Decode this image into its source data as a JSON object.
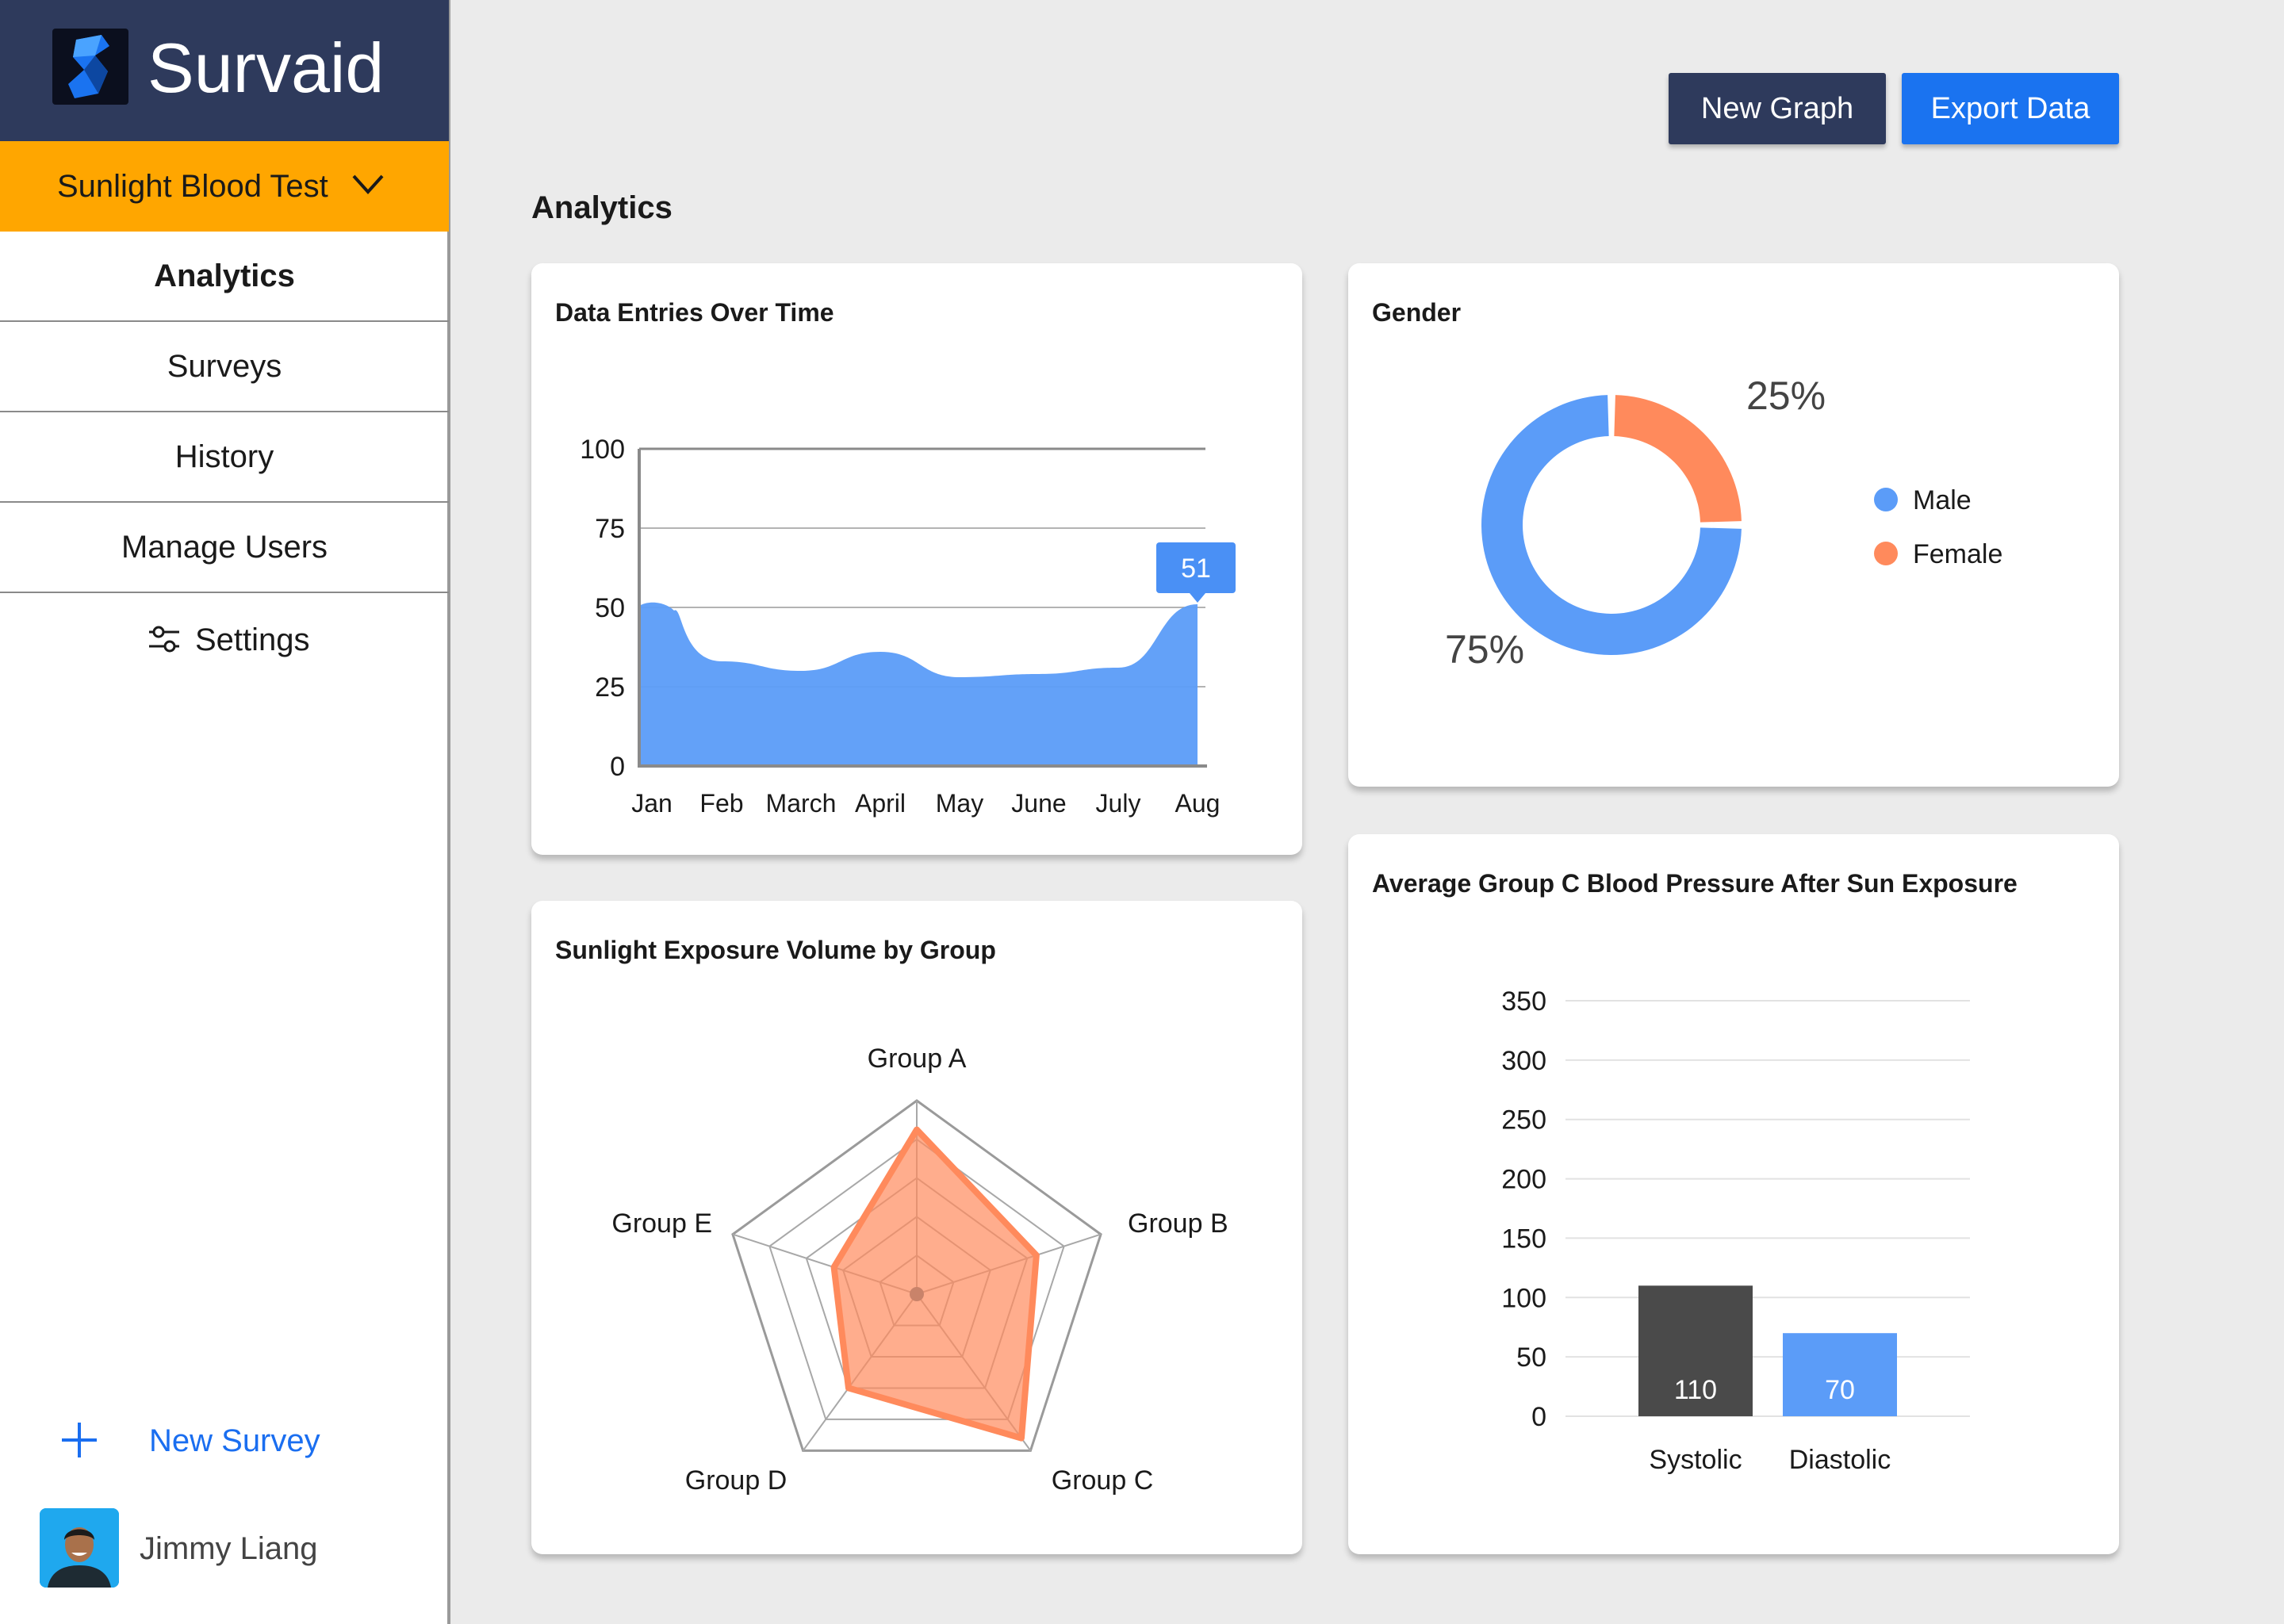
{
  "brand": {
    "name": "Survaid",
    "logo_icon": "survaid-logo-icon"
  },
  "project": {
    "name": "Sunlight Blood Test",
    "icon": "chevron-down-icon"
  },
  "nav": {
    "items": [
      {
        "label": "Analytics",
        "active": true
      },
      {
        "label": "Surveys"
      },
      {
        "label": "History"
      },
      {
        "label": "Manage Users"
      }
    ],
    "settings_label": "Settings",
    "settings_icon": "sliders-icon"
  },
  "new_survey": {
    "label": "New Survey",
    "icon": "plus-icon"
  },
  "user": {
    "name": "Jimmy Liang"
  },
  "toolbar": {
    "new_graph_label": "New Graph",
    "export_label": "Export Data"
  },
  "page": {
    "title": "Analytics"
  },
  "colors": {
    "navy": "#2e3a5c",
    "orange_accent": "#ffa600",
    "blue": "#5b9cf8",
    "coral": "#ff8a5c",
    "dark_bar": "#4a4a4a",
    "primary_button": "#1a73f0"
  },
  "chart_data": [
    {
      "type": "area",
      "title": "Data Entries Over Time",
      "categories": [
        "Jan",
        "Feb",
        "March",
        "April",
        "May",
        "June",
        "July",
        "Aug"
      ],
      "values": [
        51,
        33,
        30,
        36,
        28,
        29,
        31,
        51
      ],
      "yticks": [
        0,
        25,
        50,
        75,
        100
      ],
      "ylim": [
        0,
        100
      ],
      "callout": "51",
      "color": "#5b9cf8"
    },
    {
      "type": "pie",
      "title": "Gender",
      "slices": [
        {
          "name": "Male",
          "value": 75,
          "label": "75%",
          "color": "#5b9cf8"
        },
        {
          "name": "Female",
          "value": 25,
          "label": "25%",
          "color": "#ff8a5c"
        }
      ],
      "legend": "right"
    },
    {
      "type": "radar",
      "title": "Sunlight Exposure Volume by Group",
      "axes": [
        "Group A",
        "Group B",
        "Group C",
        "Group D",
        "Group E"
      ],
      "values": [
        85,
        65,
        92,
        60,
        45
      ],
      "max": 100,
      "color": "#ff8a5c"
    },
    {
      "type": "bar",
      "title": "Average Group C Blood Pressure After Sun Exposure",
      "categories": [
        "Systolic",
        "Diastolic"
      ],
      "values": [
        110,
        70
      ],
      "value_labels": [
        "110",
        "70"
      ],
      "colors": [
        "#4a4a4a",
        "#5b9cf8"
      ],
      "yticks": [
        0,
        50,
        100,
        150,
        200,
        250,
        300,
        350
      ],
      "ylim": [
        0,
        350
      ]
    }
  ]
}
